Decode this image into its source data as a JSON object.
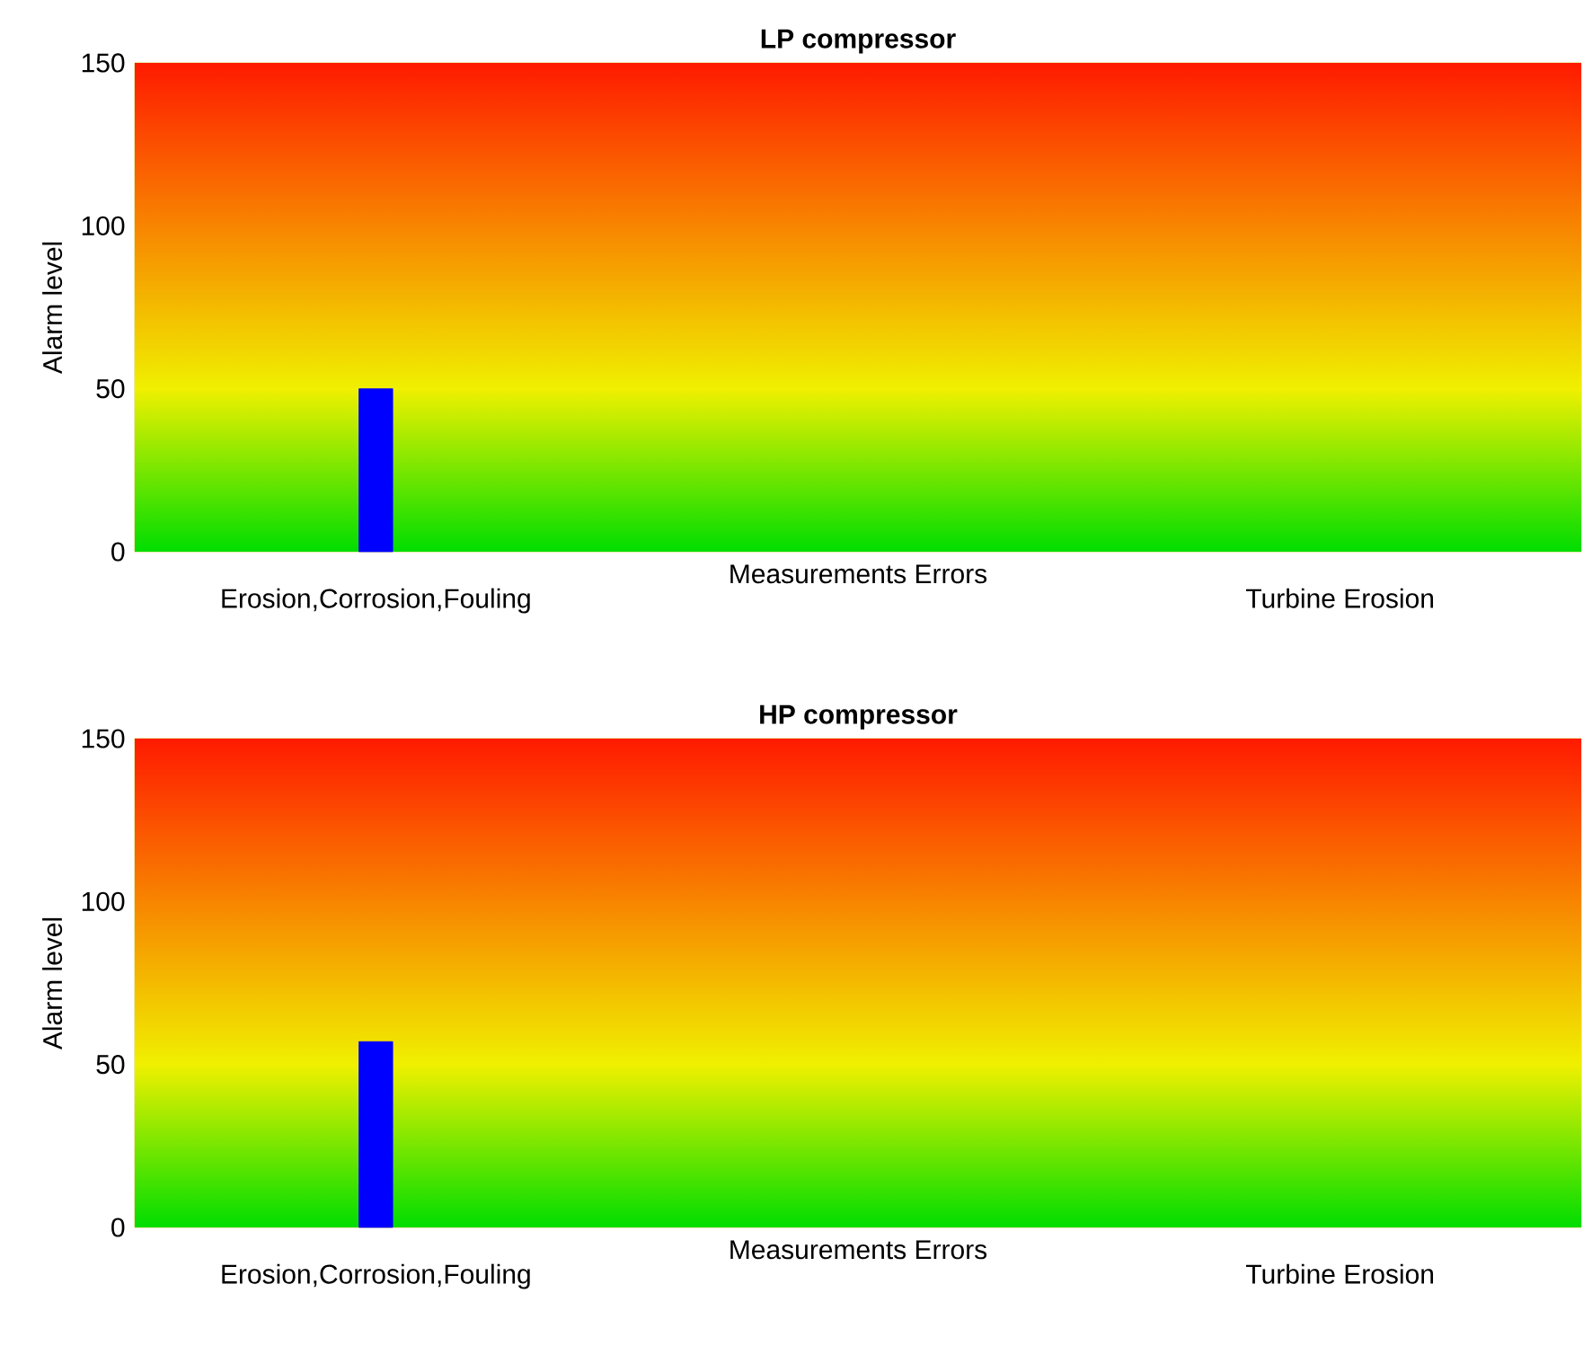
{
  "chart_data": [
    {
      "type": "bar",
      "title": "LP compressor",
      "ylabel": "Alarm level",
      "categories": [
        "Erosion,Corrosion,Fouling",
        "Measurements Errors",
        "Turbine Erosion"
      ],
      "values": [
        50,
        null,
        null
      ],
      "color": "#0000ff",
      "ylim": [
        0,
        150
      ],
      "yticks": [
        0,
        50,
        100,
        150
      ],
      "bands": [
        {
          "axis": "y",
          "from": 0,
          "to": 50,
          "color": "#00dd00"
        },
        {
          "axis": "y",
          "from": 50,
          "to": 150,
          "color": "#ff1a00"
        }
      ],
      "ref_lines": [
        {
          "axis": "y",
          "value": 50,
          "color": "#f0f000"
        }
      ]
    },
    {
      "type": "bar",
      "title": "HP compressor",
      "ylabel": "Alarm level",
      "categories": [
        "Erosion,Corrosion,Fouling",
        "Measurements Errors",
        "Turbine Erosion"
      ],
      "values": [
        57,
        null,
        null
      ],
      "color": "#0000ff",
      "ylim": [
        0,
        150
      ],
      "yticks": [
        0,
        50,
        100,
        150
      ],
      "bands": [
        {
          "axis": "y",
          "from": 0,
          "to": 50,
          "color": "#00dd00"
        },
        {
          "axis": "y",
          "from": 50,
          "to": 150,
          "color": "#ff1a00"
        }
      ],
      "ref_lines": [
        {
          "axis": "y",
          "value": 50,
          "color": "#f0f000"
        }
      ]
    }
  ]
}
